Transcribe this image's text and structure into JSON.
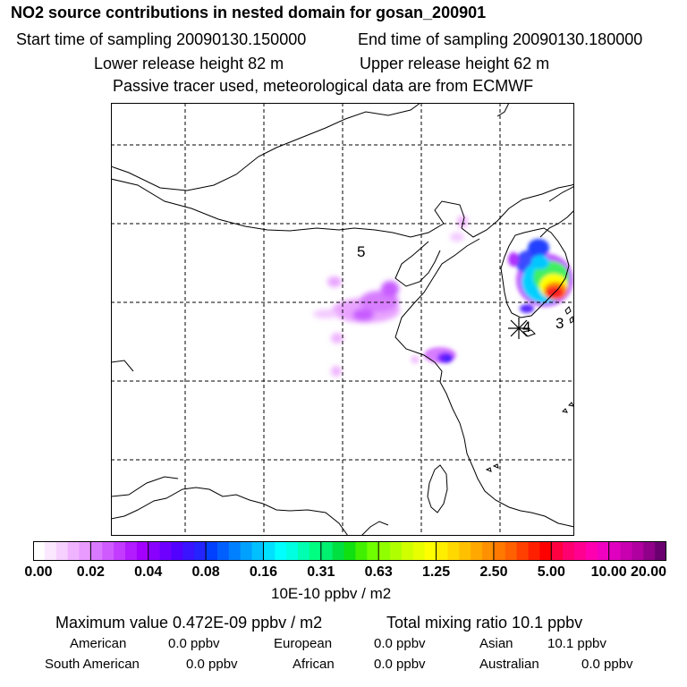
{
  "header": {
    "title": "NO2 source contributions in nested domain for gosan_200901",
    "start_time": "Start time of sampling 20090130.150000",
    "end_time": "End time of sampling 20090130.180000",
    "lower_release": "Lower release height   82 m",
    "upper_release": "Upper release height   62 m",
    "tracer_note": "Passive tracer used, meteorological data are from ECMWF"
  },
  "map": {
    "labels": [
      "5",
      "4",
      "3"
    ],
    "receptor_marker": "star-icon"
  },
  "colorbar": {
    "ticks": [
      "0.00",
      "0.02",
      "0.04",
      "0.08",
      "0.16",
      "0.31",
      "0.63",
      "1.25",
      "2.50",
      "5.00",
      "10.00",
      "20.00"
    ],
    "units": "10E-10 ppbv / m2",
    "colors": [
      [
        "#ffffff",
        "#fbe8ff",
        "#f6d0ff",
        "#efb3ff",
        "#e99bff"
      ],
      [
        "#d979ff",
        "#cf5bff",
        "#c23bff",
        "#b21cff",
        "#a300ff"
      ],
      [
        "#8a00ff",
        "#6e00ff",
        "#5200ff",
        "#3a14ff",
        "#2424ff"
      ],
      [
        "#0040ff",
        "#0060ff",
        "#0080ff",
        "#00a0ff",
        "#00c0ff"
      ],
      [
        "#00e0ff",
        "#00ffff",
        "#00ffe0",
        "#00ffb0",
        "#00ff80"
      ],
      [
        "#00f070",
        "#00e040",
        "#10e010",
        "#40f000",
        "#70ff00"
      ],
      [
        "#90ff00",
        "#b0ff00",
        "#d0ff00",
        "#e8ff00",
        "#ffff00"
      ],
      [
        "#ffee00",
        "#ffd800",
        "#ffc000",
        "#ffa800",
        "#ff9000"
      ],
      [
        "#ff7800",
        "#ff6000",
        "#ff4000",
        "#ff2000",
        "#ff0000"
      ],
      [
        "#ff0040",
        "#ff0070",
        "#ff0090",
        "#ff00b0",
        "#f000c0"
      ],
      [
        "#e000c0",
        "#c800b0",
        "#b000a0",
        "#900088",
        "#6a0070"
      ]
    ]
  },
  "stats": {
    "max_value": "Maximum value  0.472E-09 ppbv / m2",
    "total_mixing": "Total mixing ratio      10.1 ppbv",
    "american_label": "American",
    "american_value": "0.0 ppbv",
    "european_label": "European",
    "european_value": "0.0 ppbv",
    "asian_label": "Asian",
    "asian_value": "10.1 ppbv",
    "south_american_label": "South American",
    "south_american_value": "0.0 ppbv",
    "african_label": "African",
    "african_value": "0.0 ppbv",
    "australian_label": "Australian",
    "australian_value": "0.0 ppbv"
  }
}
